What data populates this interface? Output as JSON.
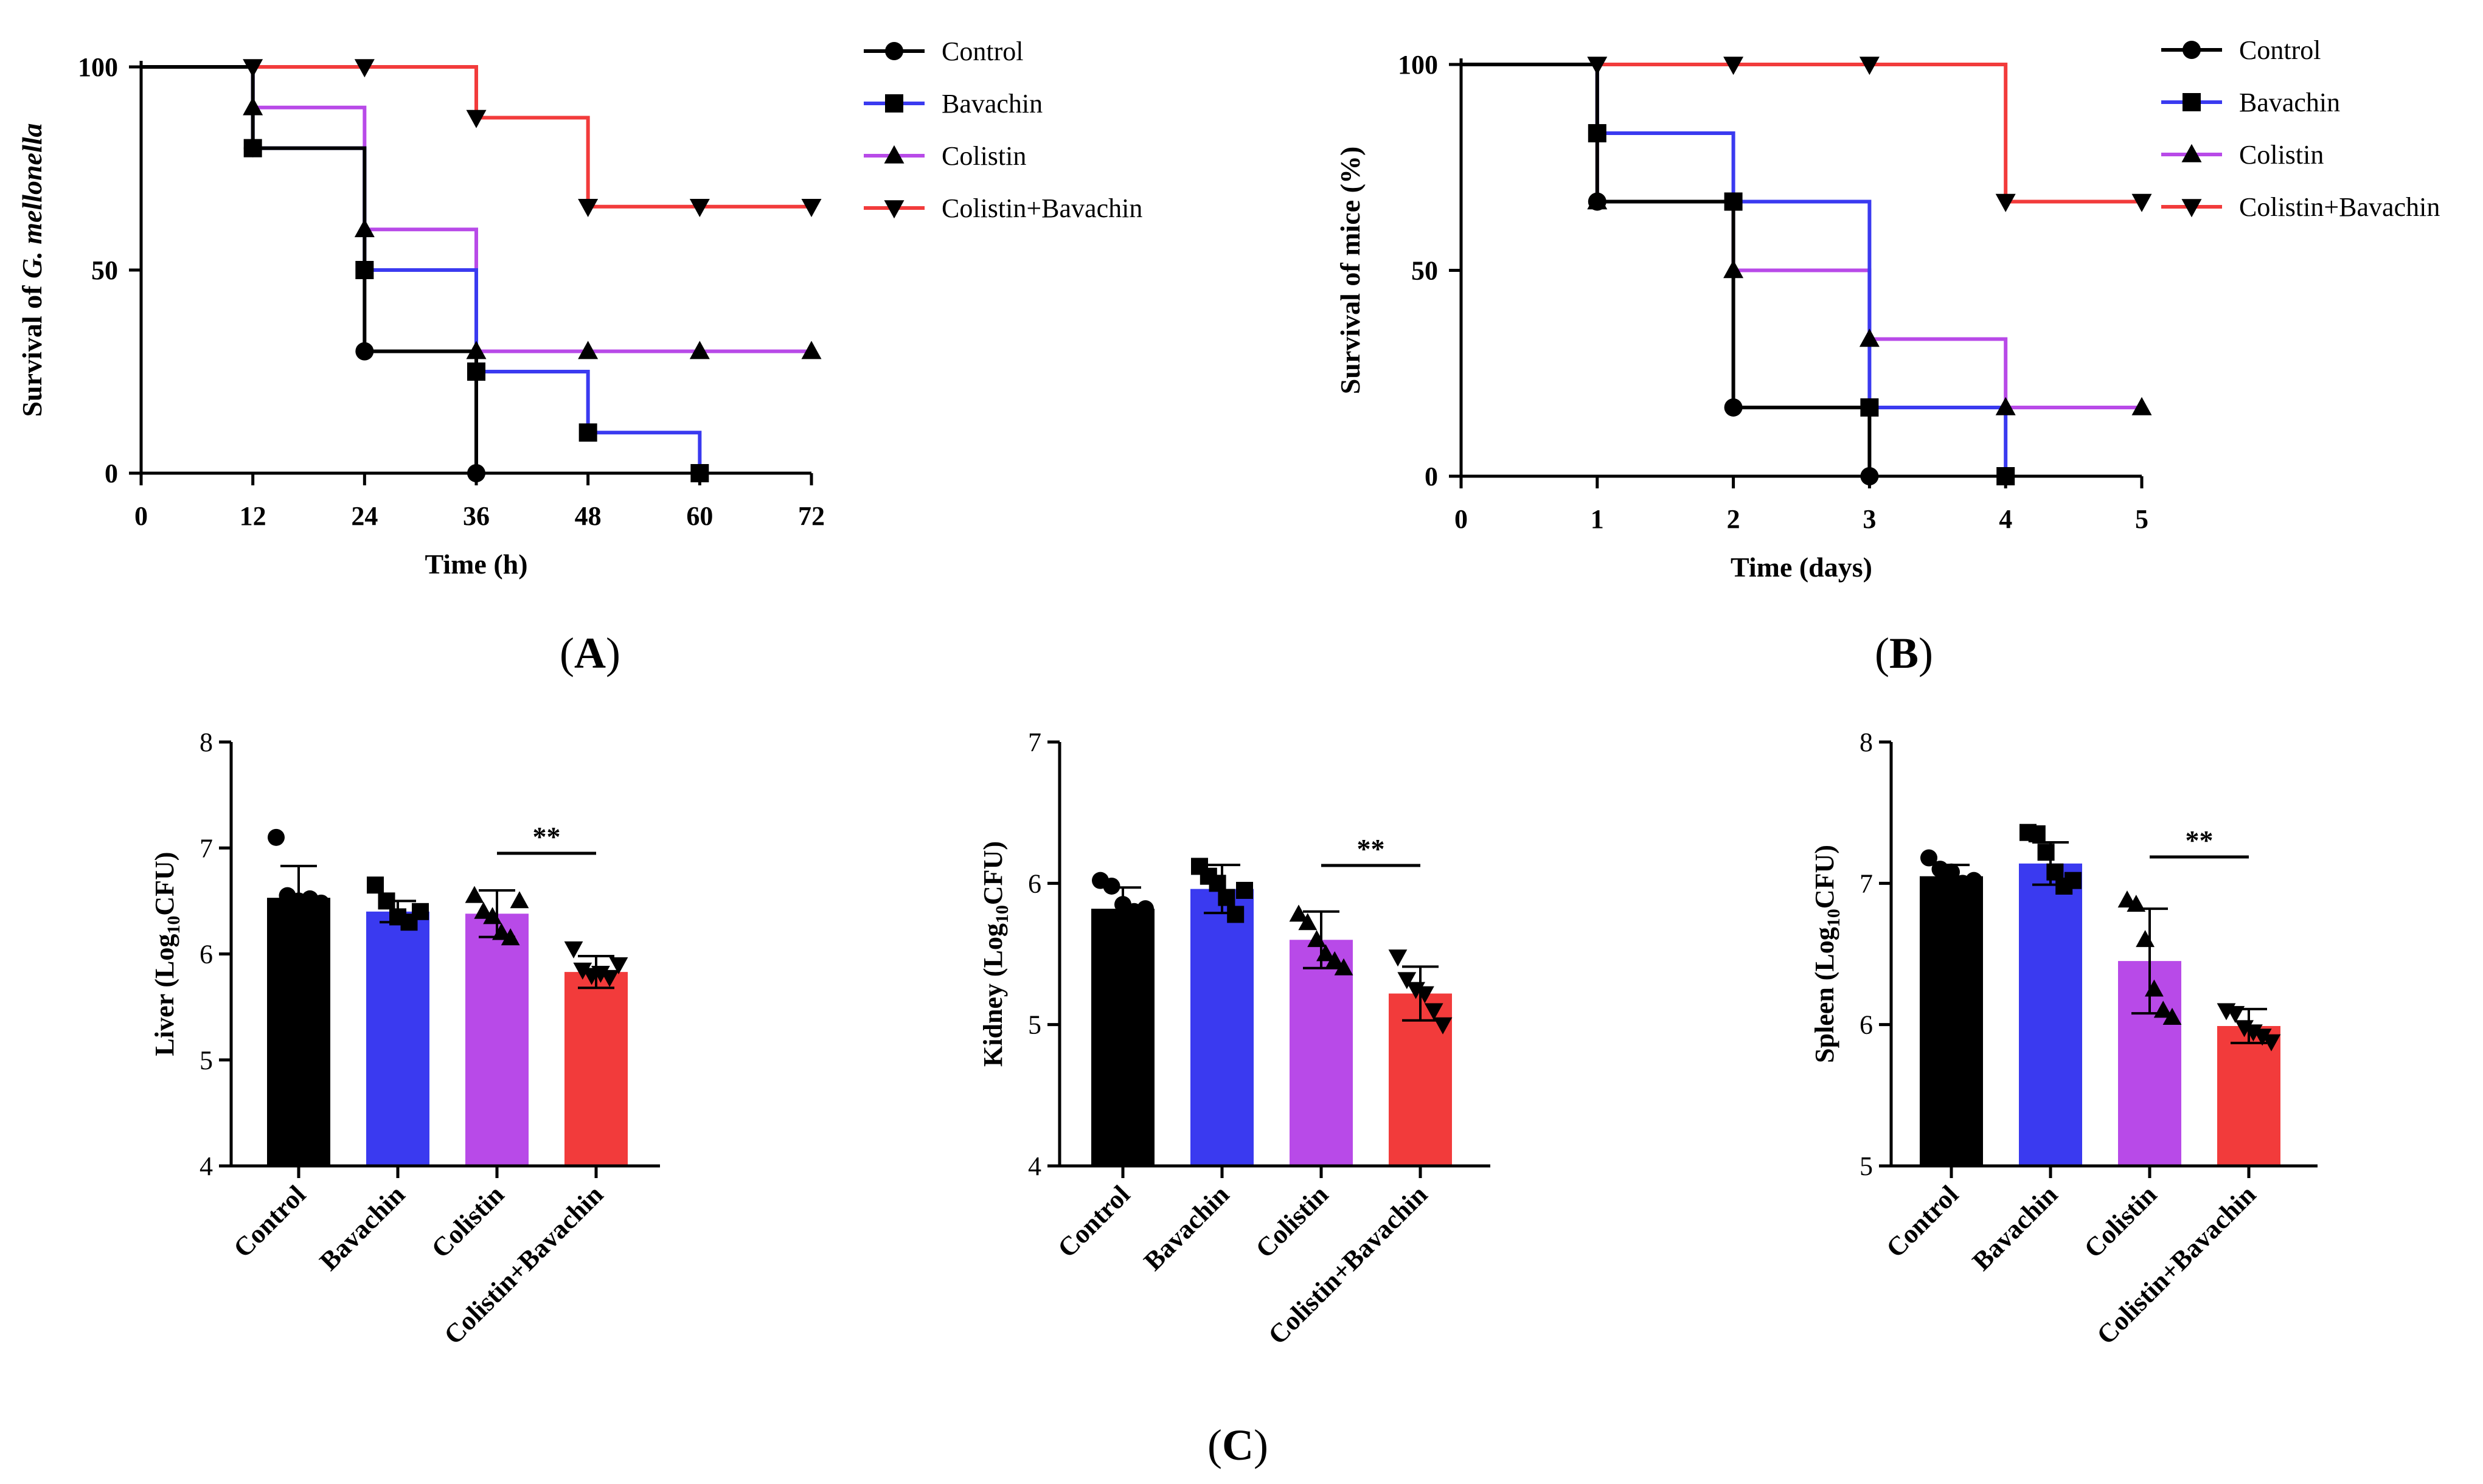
{
  "panel_labels": {
    "A": "A",
    "B": "B",
    "C": "C"
  },
  "colors": {
    "Control": "#000000",
    "Bavachin": "#3a3af0",
    "Colistin": "#b84ae8",
    "Colistin+Bavachin": "#f23b3b"
  },
  "chart_data": [
    {
      "id": "A",
      "type": "line",
      "subtype": "kaplan-meier",
      "title": "",
      "xlabel": "Time (h)",
      "ylabel": "Survival of G. mellonella",
      "ylabel_plain": "Survival of ",
      "ylabel_italic": "G. mellonella",
      "xlim": [
        0,
        72
      ],
      "ylim": [
        0,
        100
      ],
      "xticks": [
        0,
        12,
        24,
        36,
        48,
        60,
        72
      ],
      "yticks": [
        0,
        50,
        100
      ],
      "legend": "right",
      "series": [
        {
          "name": "Control",
          "marker": "circle",
          "steps": [
            [
              0,
              100
            ],
            [
              12,
              80
            ],
            [
              24,
              30
            ],
            [
              36,
              0
            ]
          ],
          "points": [
            [
              12,
              80
            ],
            [
              24,
              30
            ],
            [
              36,
              0
            ]
          ]
        },
        {
          "name": "Bavachin",
          "marker": "square",
          "steps": [
            [
              0,
              100
            ],
            [
              12,
              80
            ],
            [
              24,
              50
            ],
            [
              36,
              25
            ],
            [
              48,
              10
            ],
            [
              60,
              0
            ]
          ],
          "points": [
            [
              12,
              80
            ],
            [
              24,
              50
            ],
            [
              36,
              25
            ],
            [
              48,
              10
            ],
            [
              60,
              0
            ]
          ]
        },
        {
          "name": "Colistin",
          "marker": "triangle-up",
          "steps": [
            [
              0,
              100
            ],
            [
              12,
              90
            ],
            [
              24,
              60
            ],
            [
              36,
              30
            ],
            [
              72,
              30
            ]
          ],
          "points": [
            [
              12,
              90
            ],
            [
              24,
              60
            ],
            [
              36,
              30
            ],
            [
              48,
              30
            ],
            [
              60,
              30
            ],
            [
              72,
              30
            ]
          ]
        },
        {
          "name": "Colistin+Bavachin",
          "marker": "triangle-down",
          "steps": [
            [
              0,
              100
            ],
            [
              12,
              100
            ],
            [
              36,
              87.5
            ],
            [
              48,
              65.6
            ],
            [
              72,
              65.6
            ]
          ],
          "points": [
            [
              12,
              100
            ],
            [
              24,
              100
            ],
            [
              36,
              87.5
            ],
            [
              48,
              65.6
            ],
            [
              60,
              65.6
            ],
            [
              72,
              65.6
            ]
          ]
        }
      ]
    },
    {
      "id": "B",
      "type": "line",
      "subtype": "kaplan-meier",
      "title": "",
      "xlabel": "Time (days)",
      "ylabel": "Survival of mice (%)",
      "xlim": [
        0,
        5
      ],
      "ylim": [
        0,
        100
      ],
      "xticks": [
        0,
        1,
        2,
        3,
        4,
        5
      ],
      "yticks": [
        0,
        50,
        100
      ],
      "legend": "right",
      "series": [
        {
          "name": "Control",
          "legend_label": "Control",
          "marker": "circle",
          "steps": [
            [
              0,
              100
            ],
            [
              1,
              66.7
            ],
            [
              2,
              16.7
            ],
            [
              3,
              0
            ]
          ],
          "points": [
            [
              1,
              66.7
            ],
            [
              2,
              16.7
            ],
            [
              3,
              0
            ]
          ]
        },
        {
          "name": "Bavachin",
          "legend_label": "Bavachin",
          "marker": "square",
          "steps": [
            [
              0,
              100
            ],
            [
              1,
              83.3
            ],
            [
              2,
              66.7
            ],
            [
              3,
              16.7
            ],
            [
              4,
              0
            ]
          ],
          "points": [
            [
              1,
              83.3
            ],
            [
              2,
              66.7
            ],
            [
              3,
              16.7
            ],
            [
              4,
              0
            ]
          ]
        },
        {
          "name": "Colistin",
          "legend_label": " Colistin",
          "marker": "triangle-up",
          "steps": [
            [
              0,
              100
            ],
            [
              1,
              66.7
            ],
            [
              2,
              50
            ],
            [
              3,
              33.3
            ],
            [
              4,
              16.7
            ],
            [
              5,
              16.7
            ]
          ],
          "points": [
            [
              1,
              66.7
            ],
            [
              2,
              50
            ],
            [
              3,
              33.3
            ],
            [
              4,
              16.7
            ],
            [
              5,
              16.7
            ]
          ]
        },
        {
          "name": "Colistin+Bavachin",
          "legend_label": "Colistin+Bavachin",
          "marker": "triangle-down",
          "steps": [
            [
              0,
              100
            ],
            [
              3,
              100
            ],
            [
              4,
              66.7
            ],
            [
              5,
              66.7
            ]
          ],
          "points": [
            [
              1,
              100
            ],
            [
              2,
              100
            ],
            [
              3,
              100
            ],
            [
              4,
              66.7
            ],
            [
              5,
              66.7
            ]
          ]
        }
      ]
    },
    {
      "id": "C-liver",
      "type": "bar",
      "title": "",
      "ylabel": "Liver (Log10CFU)",
      "ylabel_pre": "Liver (Log",
      "ylabel_sub": "10",
      "ylabel_post": "CFU)",
      "ylim": [
        4,
        8
      ],
      "yticks": [
        4,
        5,
        6,
        7,
        8
      ],
      "categories": [
        "Control",
        "Bavachin",
        "Colistin",
        "Colistin+Bavachin"
      ],
      "values": [
        6.53,
        6.4,
        6.38,
        5.83
      ],
      "errors": [
        0.3,
        0.1,
        0.22,
        0.15
      ],
      "points": [
        [
          7.1,
          6.55,
          6.5,
          6.52,
          6.48
        ],
        [
          6.65,
          6.5,
          6.35,
          6.3,
          6.4
        ],
        [
          6.55,
          6.4,
          6.35,
          6.2,
          6.15,
          6.5
        ],
        [
          6.05,
          5.85,
          5.8,
          5.82,
          5.78,
          5.9
        ]
      ],
      "annotation": {
        "text": "**",
        "between": [
          2,
          3
        ]
      }
    },
    {
      "id": "C-kidney",
      "type": "bar",
      "title": "",
      "ylabel": "Kidney (Log10CFU)",
      "ylabel_pre": "Kidney (Log",
      "ylabel_sub": "10",
      "ylabel_post": "CFU)",
      "ylim": [
        4,
        7
      ],
      "yticks": [
        4,
        5,
        6,
        7
      ],
      "categories": [
        "Control",
        "Bavachin",
        "Colistin",
        "Colistin+Bavachin"
      ],
      "values": [
        5.82,
        5.96,
        5.6,
        5.22
      ],
      "errors": [
        0.15,
        0.17,
        0.2,
        0.19
      ],
      "points": [
        [
          6.02,
          5.98,
          5.85,
          5.8,
          5.82
        ],
        [
          6.12,
          6.05,
          6.0,
          5.9,
          5.78,
          5.95
        ],
        [
          5.78,
          5.72,
          5.6,
          5.5,
          5.45,
          5.4
        ],
        [
          5.48,
          5.32,
          5.25,
          5.22,
          5.1,
          5.0
        ]
      ],
      "annotation": {
        "text": "**",
        "between": [
          2,
          3
        ]
      }
    },
    {
      "id": "C-spleen",
      "type": "bar",
      "title": "",
      "ylabel": "Spleen (Log10CFU)",
      "ylabel_pre": "Spleen (Log",
      "ylabel_sub": "10",
      "ylabel_post": "CFU)",
      "ylim": [
        5,
        8
      ],
      "yticks": [
        5,
        6,
        7,
        8
      ],
      "categories": [
        "Control",
        "Bavachin",
        "Colistin",
        "Colistin+Bavachin"
      ],
      "values": [
        7.05,
        7.14,
        6.45,
        5.99
      ],
      "errors": [
        0.08,
        0.15,
        0.37,
        0.12
      ],
      "points": [
        [
          7.18,
          7.1,
          7.08,
          7.0,
          7.02
        ],
        [
          7.36,
          7.35,
          7.22,
          7.08,
          6.98,
          7.02
        ],
        [
          6.88,
          6.85,
          6.6,
          6.25,
          6.1,
          6.05
        ],
        [
          6.1,
          6.08,
          5.98,
          5.95,
          5.92,
          5.88
        ]
      ],
      "annotation": {
        "text": "**",
        "between": [
          2,
          3
        ]
      }
    }
  ]
}
